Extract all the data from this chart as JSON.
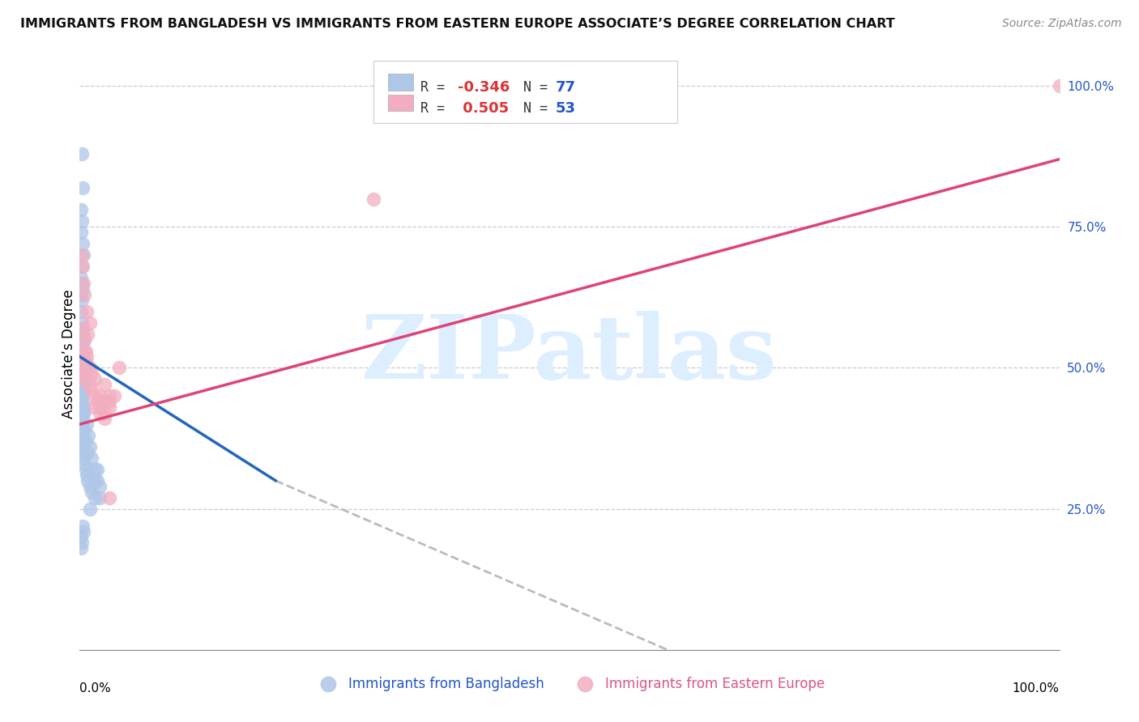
{
  "title": "IMMIGRANTS FROM BANGLADESH VS IMMIGRANTS FROM EASTERN EUROPE ASSOCIATE’S DEGREE CORRELATION CHART",
  "source": "Source: ZipAtlas.com",
  "ylabel": "Associate’s Degree",
  "y_tick_labels": [
    "100.0%",
    "75.0%",
    "50.0%",
    "25.0%"
  ],
  "y_tick_positions": [
    1.0,
    0.75,
    0.5,
    0.25
  ],
  "blue_R": -0.346,
  "blue_N": 77,
  "pink_R": 0.505,
  "pink_N": 53,
  "blue_color": "#aec6e8",
  "pink_color": "#f2aec0",
  "blue_line_color": "#2266bb",
  "pink_line_color": "#dd4477",
  "gray_dash_color": "#bbbbbb",
  "watermark_color": "#ddeeff",
  "legend_R_color": "#dd3333",
  "legend_N_color": "#2255cc",
  "blue_legend_patch": "#aec6e8",
  "pink_legend_patch": "#f2aec0",
  "xlim": [
    0.0,
    1.0
  ],
  "ylim": [
    0.0,
    1.05
  ],
  "blue_line_x0": 0.0,
  "blue_line_x1": 0.2,
  "blue_line_y0": 0.52,
  "blue_line_y1": 0.3,
  "gray_line_x0": 0.2,
  "gray_line_x1": 0.6,
  "gray_line_y0": 0.3,
  "gray_line_y1": 0.0,
  "pink_line_x0": 0.0,
  "pink_line_x1": 1.0,
  "pink_line_y0": 0.4,
  "pink_line_y1": 0.87,
  "bottom_label_blue": "Immigrants from Bangladesh",
  "bottom_label_pink": "Immigrants from Eastern Europe"
}
